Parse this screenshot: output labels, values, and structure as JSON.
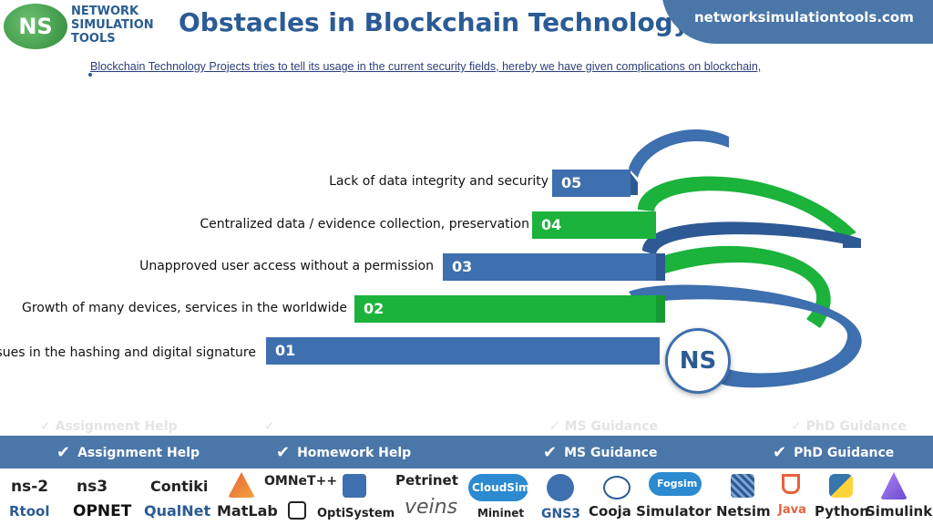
{
  "header": {
    "logo_initials": "NS",
    "logo_text": [
      "NETWORK",
      "SIMULATION",
      "TOOLS"
    ],
    "title": "Obstacles in Blockchain Technology",
    "site_url": "networksimulationtools.com"
  },
  "subtitle": "Blockchain Technology Projects tries to tell its usage in the current security fields, hereby we have given complications on blockchain,",
  "steps": [
    {
      "number": "05",
      "label": "Lack of data integrity and security",
      "color": "#3e6fae"
    },
    {
      "number": "04",
      "label": "Centralized data / evidence collection,  preservation",
      "color": "#1bb33b"
    },
    {
      "number": "03",
      "label": "Unapproved user access without a permission",
      "color": "#3e6fae"
    },
    {
      "number": "02",
      "label": "Growth of many devices,  services in the worldwide",
      "color": "#1bb33b"
    },
    {
      "number": "01",
      "label": "Issues in the hashing and digital signature",
      "color": "#3e6fae"
    }
  ],
  "center_badge": "NS",
  "help_bar": {
    "items": [
      "Assignment Help",
      "Homework Help",
      "MS  Guidance",
      "PhD  Guidance"
    ],
    "ghost_items": [
      "Assignment Help",
      "MS  Guidance",
      "PhD  Guidance"
    ]
  },
  "tools": {
    "row1": [
      "ns-2",
      "ns3",
      "Contiki",
      "OMNeT++",
      "Petrinet",
      "CloudSim",
      "Fogsim"
    ],
    "row2": [
      "Rtool",
      "OPNET",
      "QualNet",
      "MatLab",
      "OptiSystem",
      "veins",
      "Mininet",
      "GNS3",
      "Cooja Simulator",
      "Netsim",
      "Java",
      "Python",
      "Simulink"
    ]
  },
  "colors": {
    "blue": "#3e6fae",
    "green": "#1bb33b",
    "title": "#2b5b94",
    "bar": "#4a76a8"
  }
}
